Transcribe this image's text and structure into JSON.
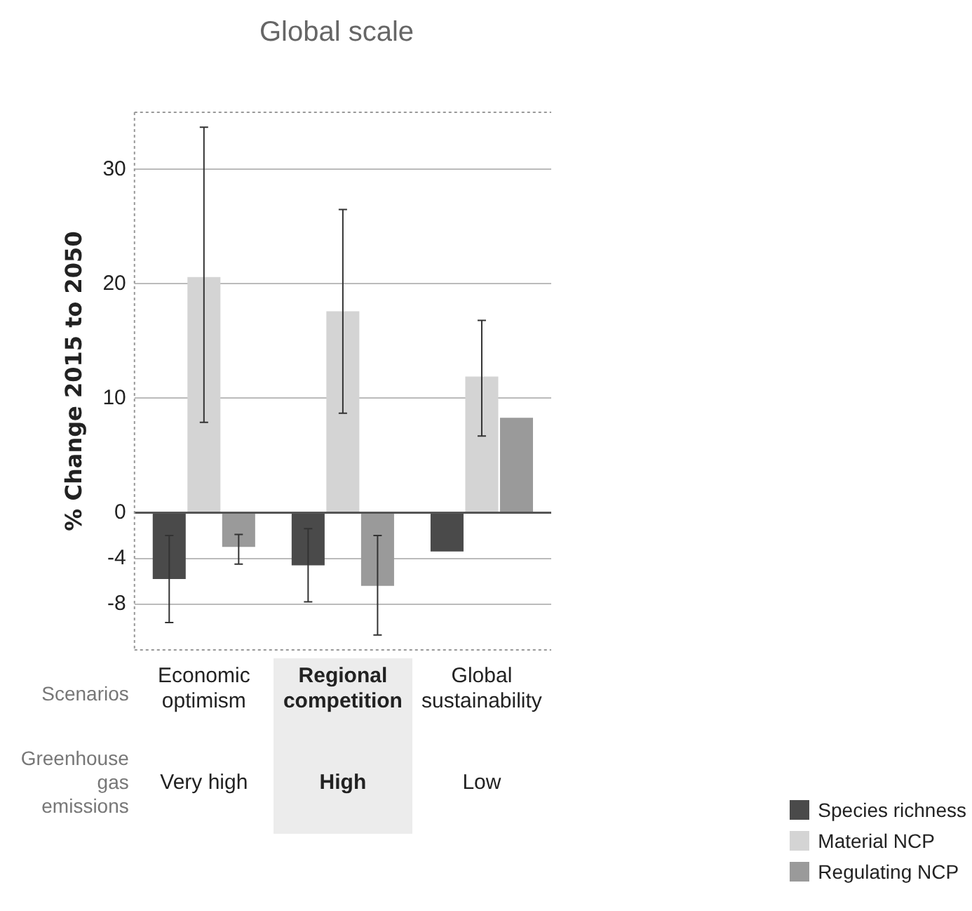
{
  "chart_data": {
    "type": "bar",
    "title": "Global scale",
    "ylabel": "% Change 2015 to 2050",
    "categories": [
      "Economic optimism",
      "Regional competition",
      "Global sustainability"
    ],
    "series": [
      {
        "name": "Species richness",
        "color": "#4a4a4a",
        "values": [
          -5.8,
          -4.6,
          -3.4
        ],
        "errors": [
          [
            -9.6,
            -2.0
          ],
          [
            -7.8,
            -1.4
          ],
          null
        ]
      },
      {
        "name": "Material NCP",
        "color": "#d4d4d4",
        "values": [
          20.6,
          17.6,
          11.9
        ],
        "errors": [
          [
            7.9,
            33.7
          ],
          [
            8.7,
            26.5
          ],
          [
            6.7,
            16.8
          ]
        ]
      },
      {
        "name": "Regulating NCP",
        "color": "#9a9a9a",
        "values": [
          -3.0,
          -6.4,
          8.3
        ],
        "errors": [
          [
            -4.5,
            -1.9
          ],
          [
            -10.7,
            -2.0
          ],
          null
        ]
      }
    ],
    "ylim": [
      -12,
      35
    ],
    "yticks": [
      -8,
      -4,
      0,
      10,
      20,
      30
    ],
    "grid": "y",
    "legend": "bottom right",
    "annotations": [
      "Scenarios",
      "Greenhouse gas emissions",
      "Very high",
      "High",
      "Low"
    ]
  }
}
